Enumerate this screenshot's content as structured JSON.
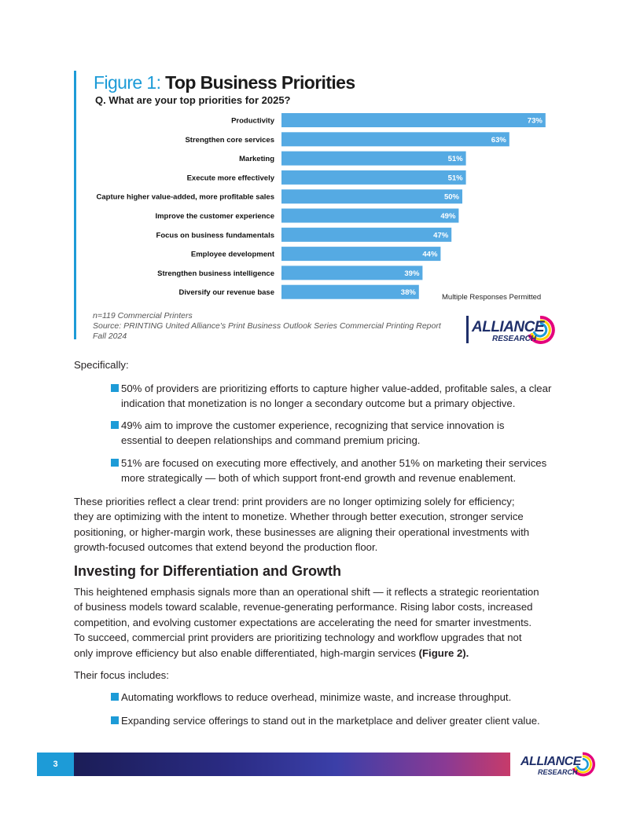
{
  "figure": {
    "label": "Figure 1:",
    "title": "Top Business Priorities",
    "question": "Q. What are your top priorities for 2025?",
    "note_multi": "Multiple Responses Permitted",
    "sample": "n=119 Commercial Printers",
    "source": "Source: PRINTING United Alliance's Print Business Outlook Series Commercial Printing Report Fall 2024"
  },
  "chart_data": {
    "type": "bar",
    "orientation": "horizontal",
    "categories": [
      "Productivity",
      "Strengthen core services",
      "Marketing",
      "Execute more effectively",
      "Capture higher value-added, more profitable sales",
      "Improve the customer experience",
      "Focus on business fundamentals",
      "Employee development",
      "Strengthen business intelligence",
      "Diversify our revenue base"
    ],
    "values": [
      73,
      63,
      51,
      51,
      50,
      49,
      47,
      44,
      39,
      38
    ],
    "value_labels": [
      "73%",
      "63%",
      "51%",
      "51%",
      "50%",
      "49%",
      "47%",
      "44%",
      "39%",
      "38%"
    ],
    "xlim": [
      0,
      100
    ],
    "grid": false,
    "bar_color": "#55aae3"
  },
  "logo": {
    "word": "ALLIANCE",
    "sub": "RESEARCH"
  },
  "content": {
    "specifically": "Specifically:",
    "bullets1": [
      "50% of providers are prioritizing efforts to capture higher value-added, profitable sales, a clear",
      "indication that monetization is no longer a secondary outcome but a primary objective.",
      "49% aim to improve the customer experience, recognizing that service innovation is",
      "essential to deepen relationships and command premium pricing.",
      "51% are focused on executing more effectively, and another 51% on marketing their services",
      "more strategically — both of which support front-end growth and revenue enablement."
    ],
    "para1": [
      "These priorities reflect a clear trend: print providers are no longer optimizing solely for efficiency;",
      "they are optimizing with the intent to monetize. Whether through better execution, stronger service",
      "positioning, or higher-margin work, these businesses are aligning their operational investments with",
      "growth-focused outcomes that extend beyond the production floor."
    ],
    "heading": "Investing for Differentiation and Growth",
    "para2": [
      "This heightened emphasis signals more than an operational shift — it reflects a strategic reorientation",
      "of business models toward scalable, revenue-generating performance. Rising labor costs, increased",
      "competition, and evolving customer expectations are accelerating the need for smarter investments.",
      "To succeed, commercial print providers are prioritizing technology and workflow upgrades that not",
      "only improve efficiency but also enable differentiated, high-margin services "
    ],
    "para2_bold": "(Figure 2).",
    "focus": "Their focus includes:",
    "bullets2": [
      "Automating workflows to reduce overhead, minimize waste, and increase throughput.",
      "Expanding service offerings to stand out in the marketplace and deliver greater client value."
    ]
  },
  "footer": {
    "page_number": "3"
  },
  "colors": {
    "accent": "#1d9bd7",
    "bar": "#55aae3",
    "logo_navy": "#1f2f6a"
  }
}
